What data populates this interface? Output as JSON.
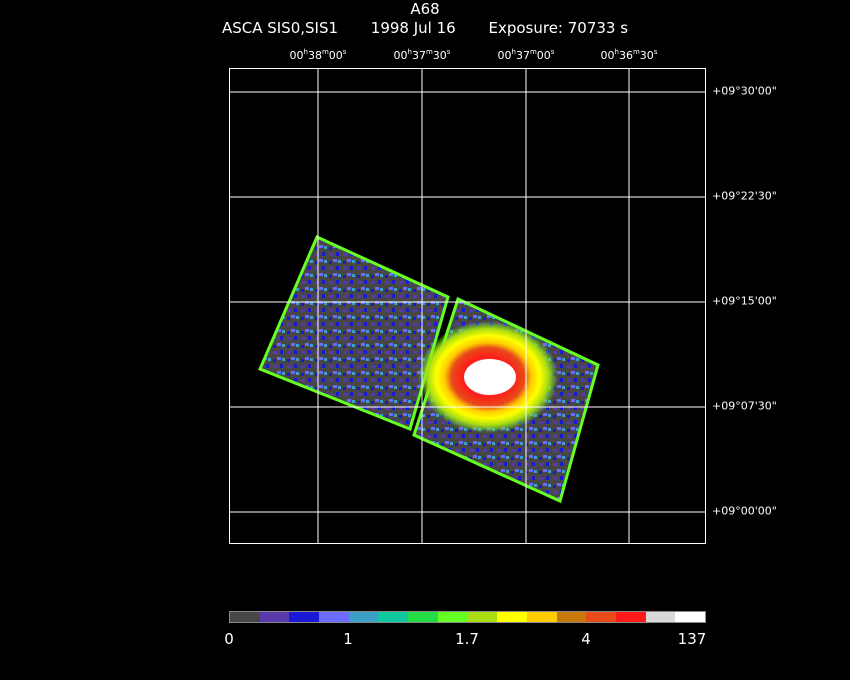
{
  "title": "A68",
  "subtitle": {
    "instrument": "ASCA SIS0,SIS1",
    "date": "1998 Jul 16",
    "exposure": "Exposure: 70733 s"
  },
  "ra_ticks": [
    {
      "h": "00",
      "m": "38",
      "s": "00"
    },
    {
      "h": "00",
      "m": "37",
      "s": "30"
    },
    {
      "h": "00",
      "m": "37",
      "s": "00"
    },
    {
      "h": "00",
      "m": "36",
      "s": "30"
    }
  ],
  "dec_ticks": [
    "+09°30'00\"",
    "+09°22'30\"",
    "+09°15'00\"",
    "+09°07'30\"",
    "+09°00'00\""
  ],
  "colorbar": {
    "colors": [
      "#474747",
      "#5a3aaa",
      "#1a1ad6",
      "#6b6bff",
      "#3ba0c8",
      "#10c8a0",
      "#22dd44",
      "#66ff22",
      "#aadd11",
      "#ffff00",
      "#ffcc00",
      "#c8780a",
      "#e84a1a",
      "#ff1a1a",
      "#d9d9d9",
      "#ffffff"
    ],
    "labels": [
      "0",
      "1",
      "1.7",
      "4",
      "137"
    ]
  }
}
